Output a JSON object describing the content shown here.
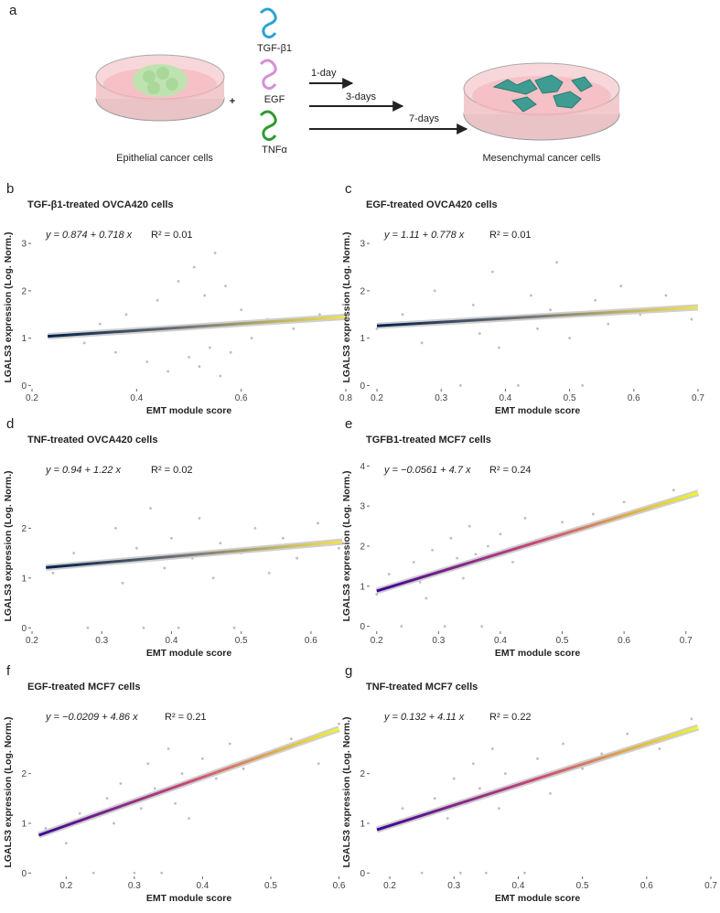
{
  "diagram": {
    "panel": "a",
    "factors": [
      "TGF-β1",
      "EGF",
      "TNFα"
    ],
    "durations": [
      "1-day",
      "3-days",
      "7-days"
    ],
    "start_label": "Epithelial cancer cells",
    "end_label": "Mesenchymal cancer cells"
  },
  "chart_data": [
    {
      "type": "scatter",
      "panel": "b",
      "title": "TGF-β1-treated OVCA420 cells",
      "equation": "y = 0.874 + 0.718 x",
      "r_squared": "R² = 0.01",
      "x_label": "EMT module score",
      "y_label": "LGALS3 expression (Log. Norm.)",
      "xlim": [
        0.2,
        0.8
      ],
      "xticks": [
        0.2,
        0.4,
        0.6,
        0.8
      ],
      "ylim": [
        -0.05,
        3.35
      ],
      "yticks": [
        0,
        1,
        2,
        3
      ],
      "point_color": "#bdbdbd",
      "x": [
        0.26,
        0.3,
        0.33,
        0.36,
        0.38,
        0.4,
        0.42,
        0.44,
        0.46,
        0.48,
        0.5,
        0.51,
        0.52,
        0.53,
        0.54,
        0.55,
        0.56,
        0.57,
        0.58,
        0.6,
        0.62,
        0.65,
        0.7,
        0.75
      ],
      "y": [
        1.1,
        0.9,
        1.3,
        0.7,
        1.5,
        1.2,
        0.5,
        1.8,
        0.3,
        2.2,
        0.6,
        2.5,
        0.4,
        1.9,
        0.8,
        2.8,
        0.2,
        2.1,
        0.7,
        1.6,
        1.0,
        1.4,
        1.2,
        1.5
      ],
      "fit": {
        "x": [
          0.23,
          0.8
        ],
        "y": [
          1.04,
          1.45
        ]
      },
      "fit_colors": [
        "#00204d",
        "#7c7b78",
        "#f5e34a"
      ]
    },
    {
      "type": "scatter",
      "panel": "c",
      "title": "EGF-treated OVCA420 cells",
      "equation": "y = 1.11 + 0.778 x",
      "r_squared": "R² = 0.01",
      "x_label": "EMT module score",
      "y_label": "LGALS3 expression (Log. Norm.)",
      "xlim": [
        0.19,
        0.71
      ],
      "xticks": [
        0.2,
        0.3,
        0.4,
        0.5,
        0.6,
        0.7
      ],
      "ylim": [
        -0.05,
        3.35
      ],
      "yticks": [
        0,
        1,
        2,
        3
      ],
      "point_color": "#bdbdbd",
      "x": [
        0.2,
        0.24,
        0.27,
        0.29,
        0.31,
        0.33,
        0.35,
        0.36,
        0.38,
        0.39,
        0.41,
        0.42,
        0.44,
        0.45,
        0.47,
        0.48,
        0.5,
        0.52,
        0.54,
        0.56,
        0.58,
        0.61,
        0.65,
        0.69
      ],
      "y": [
        1.2,
        1.5,
        0.9,
        2.0,
        1.3,
        0,
        1.7,
        1.1,
        2.4,
        0.8,
        1.4,
        0,
        1.9,
        1.2,
        1.6,
        2.6,
        1.0,
        0,
        1.8,
        1.3,
        2.1,
        1.5,
        1.9,
        1.4
      ],
      "fit": {
        "x": [
          0.2,
          0.7
        ],
        "y": [
          1.26,
          1.65
        ]
      },
      "fit_colors": [
        "#00204d",
        "#7c7b78",
        "#f5e34a"
      ]
    },
    {
      "type": "scatter",
      "panel": "d",
      "title": "TNF-treated OVCA420 cells",
      "equation": "y = 0.94 + 1.22 x",
      "r_squared": "R² = 0.02",
      "x_label": "EMT module score",
      "y_label": "LGALS3 expression (Log. Norm.)",
      "xlim": [
        0.2,
        0.65
      ],
      "xticks": [
        0.2,
        0.3,
        0.4,
        0.5,
        0.6
      ],
      "ylim": [
        -0.05,
        3.33
      ],
      "yticks": [
        0,
        1,
        2
      ],
      "point_color": "#bdbdbd",
      "x": [
        0.23,
        0.26,
        0.28,
        0.3,
        0.32,
        0.33,
        0.35,
        0.36,
        0.37,
        0.39,
        0.4,
        0.41,
        0.43,
        0.44,
        0.46,
        0.47,
        0.49,
        0.5,
        0.52,
        0.54,
        0.56,
        0.58,
        0.61,
        0.64
      ],
      "y": [
        1.1,
        1.5,
        0,
        1.3,
        2.0,
        0.9,
        1.6,
        0,
        2.4,
        1.2,
        1.8,
        0,
        1.4,
        2.2,
        1.0,
        1.7,
        0,
        1.5,
        2.0,
        1.1,
        1.8,
        1.4,
        2.1,
        1.6
      ],
      "fit": {
        "x": [
          0.22,
          0.645
        ],
        "y": [
          1.21,
          1.73
        ]
      },
      "fit_colors": [
        "#00204d",
        "#7c7b78",
        "#f5e34a"
      ]
    },
    {
      "type": "scatter",
      "panel": "e",
      "title": "TGFB1-treated MCF7 cells",
      "equation": "y = −0.0561 + 4.7 x",
      "r_squared": "R² = 0.24",
      "x_label": "EMT module score",
      "y_label": "LGALS3 expression (Log. Norm.)",
      "xlim": [
        0.19,
        0.73
      ],
      "xticks": [
        0.2,
        0.3,
        0.4,
        0.5,
        0.6,
        0.7
      ],
      "ylim": [
        -0.1,
        4.1
      ],
      "yticks": [
        0,
        1,
        2,
        3,
        4
      ],
      "point_color": "#bdbdbd",
      "x": [
        0.2,
        0.22,
        0.24,
        0.26,
        0.27,
        0.28,
        0.29,
        0.3,
        0.31,
        0.32,
        0.33,
        0.34,
        0.35,
        0.36,
        0.37,
        0.38,
        0.4,
        0.42,
        0.44,
        0.47,
        0.5,
        0.55,
        0.6,
        0.68
      ],
      "y": [
        0.8,
        1.3,
        0,
        1.6,
        1.1,
        0.7,
        1.9,
        1.4,
        0,
        2.2,
        1.7,
        1.2,
        2.5,
        1.8,
        0,
        2.0,
        2.3,
        1.6,
        2.7,
        2.1,
        2.6,
        2.8,
        3.1,
        3.4
      ],
      "fit": {
        "x": [
          0.2,
          0.72
        ],
        "y": [
          0.88,
          3.33
        ]
      },
      "fit_colors": [
        "#3b049a",
        "#cc4778",
        "#f0f921"
      ]
    },
    {
      "type": "scatter",
      "panel": "f",
      "title": "EGF-treated MCF7 cells",
      "equation": "y = −0.0209 + 4.86 x",
      "r_squared": "R² = 0.21",
      "x_label": "EMT module score",
      "y_label": "LGALS3 expression (Log. Norm.)",
      "xlim": [
        0.15,
        0.61
      ],
      "xticks": [
        0.2,
        0.3,
        0.4,
        0.5,
        0.6
      ],
      "ylim": [
        -0.05,
        3.3
      ],
      "yticks": [
        0,
        1,
        2
      ],
      "point_color": "#bdbdbd",
      "x": [
        0.17,
        0.2,
        0.22,
        0.24,
        0.26,
        0.27,
        0.28,
        0.3,
        0.31,
        0.32,
        0.33,
        0.34,
        0.35,
        0.36,
        0.37,
        0.38,
        0.4,
        0.42,
        0.44,
        0.46,
        0.5,
        0.53,
        0.57,
        0.6
      ],
      "y": [
        0.9,
        0.6,
        1.2,
        0,
        1.5,
        1.0,
        1.8,
        0,
        1.3,
        2.2,
        1.7,
        0,
        2.5,
        1.4,
        2.0,
        1.1,
        2.3,
        1.9,
        2.6,
        2.1,
        2.4,
        2.7,
        2.2,
        3.0
      ],
      "fit": {
        "x": [
          0.16,
          0.6
        ],
        "y": [
          0.76,
          2.9
        ]
      },
      "fit_colors": [
        "#3b049a",
        "#cc4778",
        "#f0f921"
      ]
    },
    {
      "type": "scatter",
      "panel": "g",
      "title": "TNF-treated MCF7 cells",
      "equation": "y = 0.132 + 4.11 x",
      "r_squared": "R² = 0.22",
      "x_label": "EMT module score",
      "y_label": "LGALS3 expression (Log. Norm.)",
      "xlim": [
        0.17,
        0.69
      ],
      "xticks": [
        0.2,
        0.3,
        0.4,
        0.5,
        0.6,
        0.7
      ],
      "ylim": [
        -0.05,
        3.3
      ],
      "yticks": [
        0,
        1,
        2
      ],
      "point_color": "#bdbdbd",
      "x": [
        0.19,
        0.22,
        0.25,
        0.27,
        0.29,
        0.3,
        0.31,
        0.32,
        0.33,
        0.34,
        0.35,
        0.36,
        0.37,
        0.38,
        0.4,
        0.41,
        0.43,
        0.45,
        0.47,
        0.5,
        0.53,
        0.57,
        0.62,
        0.67
      ],
      "y": [
        0.9,
        1.3,
        0,
        1.5,
        1.1,
        1.9,
        0,
        1.4,
        2.2,
        1.7,
        0,
        2.5,
        1.3,
        2.0,
        1.8,
        0,
        2.3,
        1.6,
        2.6,
        2.1,
        2.4,
        2.8,
        2.5,
        3.1
      ],
      "fit": {
        "x": [
          0.18,
          0.68
        ],
        "y": [
          0.87,
          2.93
        ]
      },
      "fit_colors": [
        "#3b049a",
        "#cc4778",
        "#f0f921"
      ]
    }
  ]
}
